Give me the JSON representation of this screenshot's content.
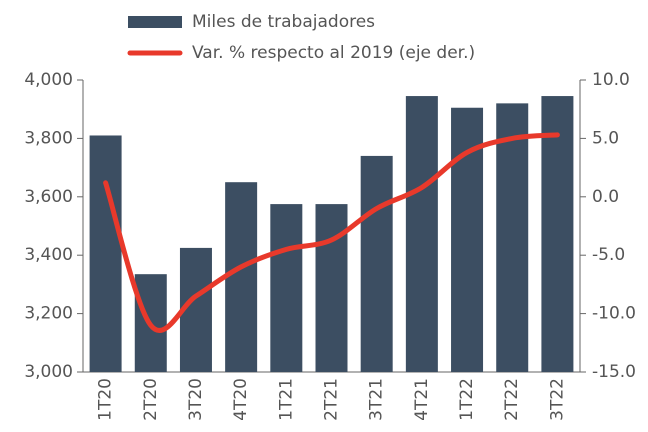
{
  "chart_data": {
    "type": "bar",
    "categories": [
      "1T20",
      "2T20",
      "3T20",
      "4T20",
      "1T21",
      "2T21",
      "3T21",
      "4T21",
      "1T22",
      "2T22",
      "3T22"
    ],
    "series": [
      {
        "name": "Miles de trabajadores",
        "color": "#3c4e62",
        "values": [
          3810,
          3335,
          3425,
          3650,
          3575,
          3575,
          3740,
          3945,
          3905,
          3920,
          3945
        ]
      },
      {
        "name": "Var. % respecto al 2019 (eje der.)",
        "color": "#e8392b",
        "type": "line",
        "axis": "y2",
        "values": [
          1.2,
          -11.0,
          -8.5,
          -6.0,
          -4.5,
          -3.7,
          -1.0,
          0.8,
          3.8,
          5.0,
          5.3
        ]
      }
    ],
    "ylim": [
      3000,
      4000
    ],
    "yticks": [
      {
        "value": 3000,
        "label": "3,000"
      },
      {
        "value": 3200,
        "label": "3,200"
      },
      {
        "value": 3400,
        "label": "3,400"
      },
      {
        "value": 3600,
        "label": "3,600"
      },
      {
        "value": 3800,
        "label": "3,800"
      },
      {
        "value": 4000,
        "label": "4,000"
      }
    ],
    "y2lim": [
      -15,
      10
    ],
    "y2ticks": [
      {
        "value": -15,
        "label": "-15.0"
      },
      {
        "value": -10,
        "label": "-10.0"
      },
      {
        "value": -5,
        "label": "-5.0"
      },
      {
        "value": 0,
        "label": "0.0"
      },
      {
        "value": 5,
        "label": "5.0"
      },
      {
        "value": 10,
        "label": "10.0"
      }
    ],
    "legend": "top"
  }
}
